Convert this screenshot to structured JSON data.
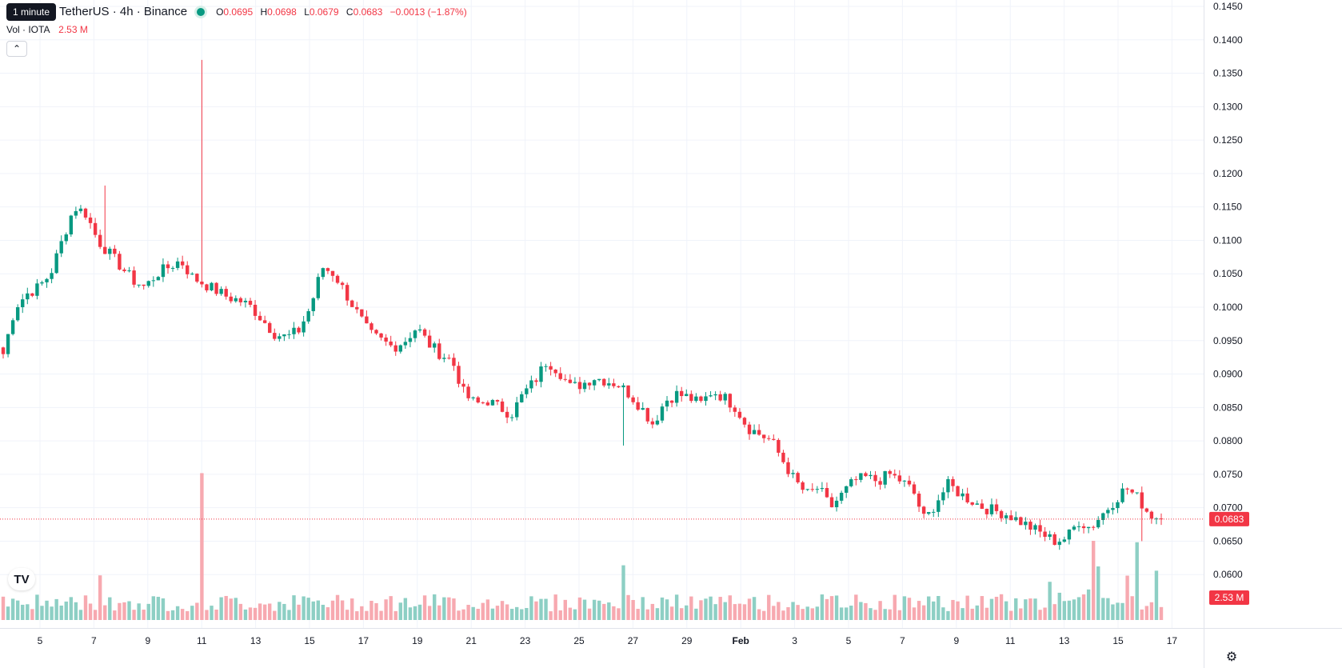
{
  "legend": {
    "tooltip": "1 minute",
    "symbol": "TetherUS · 4h · Binance",
    "ohlc": {
      "o_label": "O",
      "o": "0.0695",
      "h_label": "H",
      "h": "0.0698",
      "l_label": "L",
      "l": "0.0679",
      "c_label": "C",
      "c": "0.0683",
      "change": "−0.0013 (−1.87%)"
    },
    "volume_label": "Vol · IOTA",
    "volume_value": "2.53 M"
  },
  "colors": {
    "up": "#089981",
    "down": "#f23645",
    "up_vol": "#8dcfc4",
    "down_vol": "#f7a9b0",
    "grid": "#f0f3fa"
  },
  "chart_data": {
    "type": "candlestick",
    "title": "",
    "xlabel": "",
    "ylabel": "",
    "ylim": [
      0.055,
      0.145
    ],
    "x_ticks": [
      "5",
      "7",
      "9",
      "11",
      "13",
      "15",
      "17",
      "19",
      "21",
      "23",
      "25",
      "27",
      "29",
      "Feb",
      "3",
      "5",
      "7",
      "9",
      "11",
      "13",
      "15",
      "17"
    ],
    "y_ticks": [
      "0.1450",
      "0.1400",
      "0.1350",
      "0.1300",
      "0.1250",
      "0.1200",
      "0.1150",
      "0.1100",
      "0.1050",
      "0.1000",
      "0.0950",
      "0.0900",
      "0.0850",
      "0.0800",
      "0.0750",
      "0.0700",
      "0.0650",
      "0.0600"
    ],
    "last_price": "0.0683",
    "last_volume": "2.53 M",
    "close_path": [
      0.093,
      0.1,
      0.102,
      0.103,
      0.105,
      0.11,
      0.115,
      0.114,
      0.11,
      0.108,
      0.106,
      0.104,
      0.103,
      0.105,
      0.106,
      0.107,
      0.1045,
      0.1035,
      0.1025,
      0.1015,
      0.101,
      0.1,
      0.098,
      0.096,
      0.0955,
      0.0965,
      0.1,
      0.106,
      0.105,
      0.102,
      0.099,
      0.096,
      0.095,
      0.094,
      0.095,
      0.097,
      0.0945,
      0.093,
      0.092,
      0.087,
      0.0855,
      0.086,
      0.085,
      0.084,
      0.087,
      0.089,
      0.092,
      0.0905,
      0.088,
      0.0885,
      0.0895,
      0.089,
      0.0885,
      0.087,
      0.085,
      0.0825,
      0.086,
      0.087,
      0.0865,
      0.0855,
      0.0875,
      0.0865,
      0.085,
      0.082,
      0.081,
      0.08,
      0.077,
      0.074,
      0.072,
      0.073,
      0.07,
      0.072,
      0.074,
      0.0745,
      0.074,
      0.075,
      0.074,
      0.0725,
      0.068,
      0.071,
      0.0735,
      0.072,
      0.071,
      0.07,
      0.0695,
      0.069,
      0.068,
      0.067,
      0.066,
      0.065,
      0.0655,
      0.068,
      0.067,
      0.069,
      0.071,
      0.073,
      0.0715,
      0.069,
      0.0683
    ],
    "volume_spikes": [
      {
        "x": "8 (8:00)",
        "value": 10.2
      },
      {
        "x": "19",
        "value": 3.8
      },
      {
        "x": "30",
        "value": 5.5
      },
      {
        "x": "Feb 4",
        "value": 5.4
      }
    ]
  }
}
